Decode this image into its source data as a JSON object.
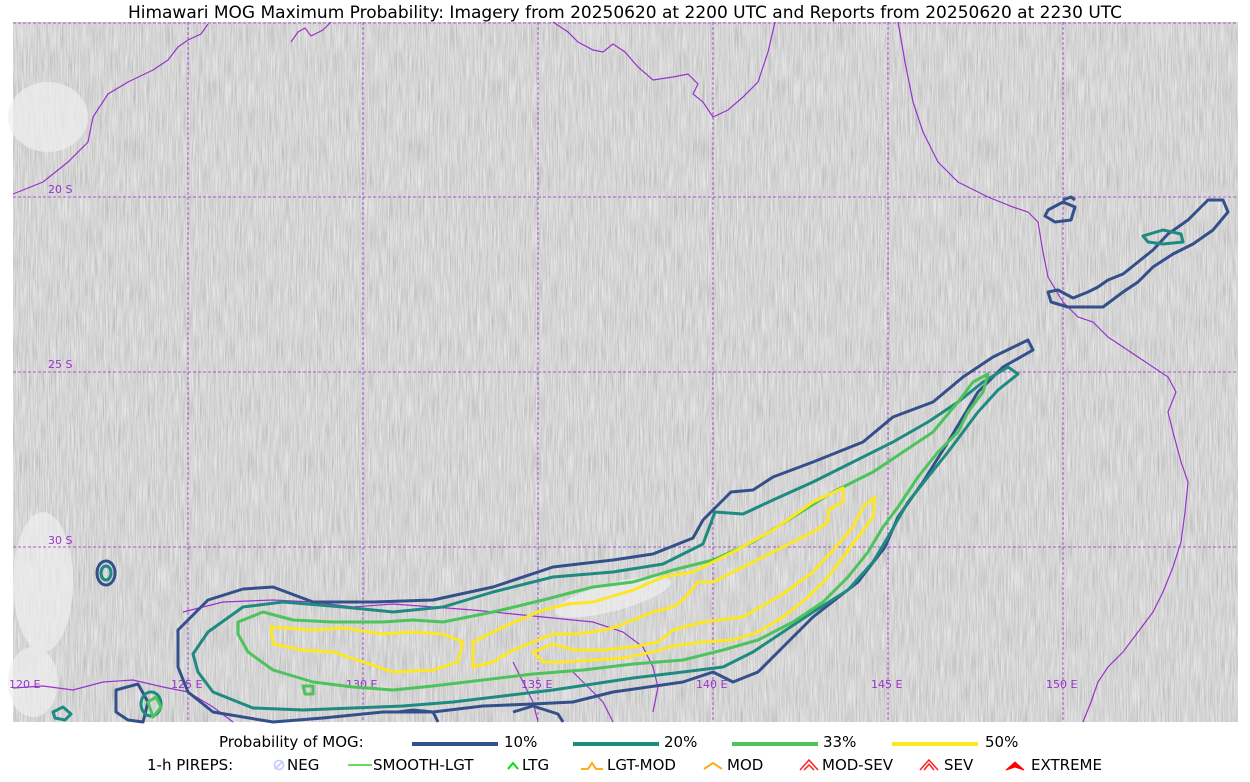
{
  "title": "Himawari MOG Maximum Probability: Imagery from 20250620 at 2200 UTC and Reports from 20250620 at 2230 UTC",
  "map": {
    "lat_labels": [
      "20 S",
      "25 S",
      "30 S"
    ],
    "lon_labels": [
      "120 E",
      "125 E",
      "130 E",
      "135 E",
      "140 E",
      "145 E",
      "150 E"
    ],
    "gridline_color": "#9932cc",
    "coastline_color": "#9932cc",
    "background": "satellite imagery (grayscale)"
  },
  "contours": [
    {
      "label": "10%",
      "color": "#34508a"
    },
    {
      "label": "20%",
      "color": "#1e8a80"
    },
    {
      "label": "33%",
      "color": "#4cc35c"
    },
    {
      "label": "50%",
      "color": "#fde725"
    }
  ],
  "legend": {
    "prob_title": "Probability of MOG:",
    "pireps_title": "1-h PIREPS:",
    "pireps": [
      {
        "label": "NEG",
        "color": "#c8c8ff",
        "icon": "circle-slash-icon"
      },
      {
        "label": "SMOOTH-LGT",
        "color": "#32cd32",
        "icon": "line-icon"
      },
      {
        "label": "LTG",
        "color": "#00e000",
        "icon": "caret-icon"
      },
      {
        "label": "LGT-MOD",
        "color": "#ffa500",
        "icon": "hat-icon"
      },
      {
        "label": "MOD",
        "color": "#ffa500",
        "icon": "caret-icon"
      },
      {
        "label": "MOD-SEV",
        "color": "#ff2020",
        "icon": "double-caret-icon"
      },
      {
        "label": "SEV",
        "color": "#ff2020",
        "icon": "double-caret-icon"
      },
      {
        "label": "EXTREME",
        "color": "#ff0000",
        "icon": "filled-caret-icon"
      }
    ]
  }
}
